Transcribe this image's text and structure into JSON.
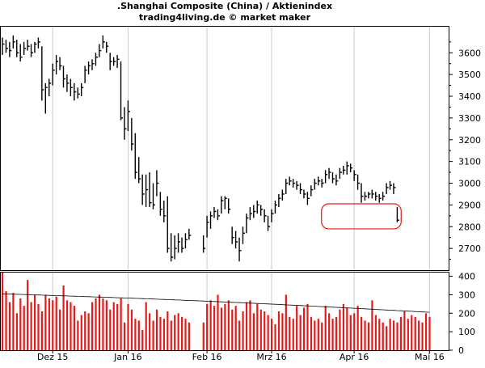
{
  "chart_data": [
    {
      "type": "ohlc",
      "title": ".Shanghai Composite (China) / Aktienindex",
      "subtitle": "trading4living.de © market maker",
      "ylim": [
        2600,
        3720
      ],
      "yticks": [
        2700,
        2800,
        2900,
        3000,
        3100,
        3200,
        3300,
        3400,
        3500,
        3600
      ],
      "ytick_labels": [
        "2700",
        "2800",
        "2900",
        "3000",
        "3100",
        "3200",
        "3300",
        "3400",
        "3500",
        "3600"
      ],
      "xticks": [
        {
          "label": "Dez 15",
          "index": 14
        },
        {
          "label": "Jan 16",
          "index": 35
        },
        {
          "label": "Feb 16",
          "index": 57
        },
        {
          "label": "Mrz 16",
          "index": 75
        },
        {
          "label": "Apr 16",
          "index": 98
        },
        {
          "label": "Mai 16",
          "index": 119
        }
      ],
      "grid": "vertical",
      "bars": [
        {
          "i": 0,
          "h": 3670,
          "l": 3590,
          "c": 3640
        },
        {
          "i": 1,
          "h": 3660,
          "l": 3600,
          "c": 3620
        },
        {
          "i": 2,
          "h": 3650,
          "l": 3580,
          "c": 3610
        },
        {
          "i": 3,
          "h": 3680,
          "l": 3620,
          "c": 3650
        },
        {
          "i": 4,
          "h": 3660,
          "l": 3580,
          "c": 3600
        },
        {
          "i": 5,
          "h": 3640,
          "l": 3560,
          "c": 3580
        },
        {
          "i": 6,
          "h": 3650,
          "l": 3590,
          "c": 3620
        },
        {
          "i": 7,
          "h": 3660,
          "l": 3610,
          "c": 3630
        },
        {
          "i": 8,
          "h": 3640,
          "l": 3580,
          "c": 3600
        },
        {
          "i": 9,
          "h": 3650,
          "l": 3600,
          "c": 3640
        },
        {
          "i": 10,
          "h": 3670,
          "l": 3620,
          "c": 3650
        },
        {
          "i": 11,
          "h": 3630,
          "l": 3380,
          "c": 3430
        },
        {
          "i": 12,
          "h": 3460,
          "l": 3320,
          "c": 3440
        },
        {
          "i": 13,
          "h": 3480,
          "l": 3400,
          "c": 3460
        },
        {
          "i": 14,
          "h": 3550,
          "l": 3450,
          "c": 3520
        },
        {
          "i": 15,
          "h": 3590,
          "l": 3500,
          "c": 3560
        },
        {
          "i": 16,
          "h": 3580,
          "l": 3520,
          "c": 3540
        },
        {
          "i": 17,
          "h": 3540,
          "l": 3440,
          "c": 3480
        },
        {
          "i": 18,
          "h": 3500,
          "l": 3420,
          "c": 3460
        },
        {
          "i": 19,
          "h": 3480,
          "l": 3400,
          "c": 3440
        },
        {
          "i": 20,
          "h": 3460,
          "l": 3380,
          "c": 3420
        },
        {
          "i": 21,
          "h": 3440,
          "l": 3390,
          "c": 3410
        },
        {
          "i": 22,
          "h": 3460,
          "l": 3400,
          "c": 3440
        },
        {
          "i": 23,
          "h": 3540,
          "l": 3460,
          "c": 3520
        },
        {
          "i": 24,
          "h": 3560,
          "l": 3500,
          "c": 3540
        },
        {
          "i": 25,
          "h": 3570,
          "l": 3520,
          "c": 3550
        },
        {
          "i": 26,
          "h": 3600,
          "l": 3540,
          "c": 3580
        },
        {
          "i": 27,
          "h": 3640,
          "l": 3580,
          "c": 3610
        },
        {
          "i": 28,
          "h": 3680,
          "l": 3620,
          "c": 3650
        },
        {
          "i": 29,
          "h": 3650,
          "l": 3600,
          "c": 3630
        },
        {
          "i": 30,
          "h": 3600,
          "l": 3520,
          "c": 3560
        },
        {
          "i": 31,
          "h": 3580,
          "l": 3540,
          "c": 3560
        },
        {
          "i": 32,
          "h": 3590,
          "l": 3530,
          "c": 3570
        },
        {
          "i": 33,
          "h": 3560,
          "l": 3290,
          "c": 3300
        },
        {
          "i": 34,
          "h": 3350,
          "l": 3200,
          "c": 3250
        },
        {
          "i": 35,
          "h": 3380,
          "l": 3240,
          "c": 3330
        },
        {
          "i": 36,
          "h": 3300,
          "l": 3150,
          "c": 3180
        },
        {
          "i": 37,
          "h": 3230,
          "l": 3020,
          "c": 3050
        },
        {
          "i": 38,
          "h": 3120,
          "l": 3000,
          "c": 3020
        },
        {
          "i": 39,
          "h": 3040,
          "l": 2900,
          "c": 2950
        },
        {
          "i": 40,
          "h": 3040,
          "l": 2890,
          "c": 2970
        },
        {
          "i": 41,
          "h": 3050,
          "l": 2890,
          "c": 2910
        },
        {
          "i": 42,
          "h": 3000,
          "l": 2880,
          "c": 2900
        },
        {
          "i": 43,
          "h": 3060,
          "l": 2940,
          "c": 3000
        },
        {
          "i": 44,
          "h": 2960,
          "l": 2850,
          "c": 2880
        },
        {
          "i": 45,
          "h": 2920,
          "l": 2820,
          "c": 2850
        },
        {
          "i": 46,
          "h": 2940,
          "l": 2680,
          "c": 2700
        },
        {
          "i": 47,
          "h": 2770,
          "l": 2640,
          "c": 2660
        },
        {
          "i": 48,
          "h": 2760,
          "l": 2650,
          "c": 2700
        },
        {
          "i": 49,
          "h": 2770,
          "l": 2680,
          "c": 2730
        },
        {
          "i": 50,
          "h": 2750,
          "l": 2680,
          "c": 2700
        },
        {
          "i": 51,
          "h": 2770,
          "l": 2700,
          "c": 2740
        },
        {
          "i": 52,
          "h": 2790,
          "l": 2740,
          "c": 2760
        },
        {
          "i": 56,
          "h": 2760,
          "l": 2680,
          "c": 2700
        },
        {
          "i": 57,
          "h": 2850,
          "l": 2750,
          "c": 2820
        },
        {
          "i": 58,
          "h": 2870,
          "l": 2790,
          "c": 2850
        },
        {
          "i": 59,
          "h": 2890,
          "l": 2840,
          "c": 2870
        },
        {
          "i": 60,
          "h": 2880,
          "l": 2830,
          "c": 2850
        },
        {
          "i": 61,
          "h": 2940,
          "l": 2860,
          "c": 2920
        },
        {
          "i": 62,
          "h": 2940,
          "l": 2880,
          "c": 2930
        },
        {
          "i": 63,
          "h": 2930,
          "l": 2860,
          "c": 2880
        },
        {
          "i": 64,
          "h": 2800,
          "l": 2720,
          "c": 2750
        },
        {
          "i": 65,
          "h": 2780,
          "l": 2700,
          "c": 2730
        },
        {
          "i": 66,
          "h": 2750,
          "l": 2640,
          "c": 2690
        },
        {
          "i": 67,
          "h": 2800,
          "l": 2720,
          "c": 2770
        },
        {
          "i": 68,
          "h": 2860,
          "l": 2770,
          "c": 2840
        },
        {
          "i": 69,
          "h": 2890,
          "l": 2830,
          "c": 2860
        },
        {
          "i": 70,
          "h": 2900,
          "l": 2840,
          "c": 2870
        },
        {
          "i": 71,
          "h": 2920,
          "l": 2860,
          "c": 2900
        },
        {
          "i": 72,
          "h": 2900,
          "l": 2850,
          "c": 2880
        },
        {
          "i": 73,
          "h": 2880,
          "l": 2820,
          "c": 2850
        },
        {
          "i": 74,
          "h": 2850,
          "l": 2780,
          "c": 2800
        },
        {
          "i": 75,
          "h": 2880,
          "l": 2820,
          "c": 2860
        },
        {
          "i": 76,
          "h": 2920,
          "l": 2860,
          "c": 2900
        },
        {
          "i": 77,
          "h": 2950,
          "l": 2890,
          "c": 2930
        },
        {
          "i": 78,
          "h": 2970,
          "l": 2920,
          "c": 2950
        },
        {
          "i": 79,
          "h": 3020,
          "l": 2950,
          "c": 3000
        },
        {
          "i": 80,
          "h": 3030,
          "l": 2990,
          "c": 3010
        },
        {
          "i": 81,
          "h": 3020,
          "l": 2980,
          "c": 3000
        },
        {
          "i": 82,
          "h": 3010,
          "l": 2970,
          "c": 2990
        },
        {
          "i": 83,
          "h": 3000,
          "l": 2950,
          "c": 2970
        },
        {
          "i": 84,
          "h": 2970,
          "l": 2930,
          "c": 2950
        },
        {
          "i": 85,
          "h": 2960,
          "l": 2900,
          "c": 2930
        },
        {
          "i": 86,
          "h": 2990,
          "l": 2940,
          "c": 2970
        },
        {
          "i": 87,
          "h": 3020,
          "l": 2970,
          "c": 3000
        },
        {
          "i": 88,
          "h": 3030,
          "l": 2990,
          "c": 3010
        },
        {
          "i": 89,
          "h": 3020,
          "l": 2980,
          "c": 3000
        },
        {
          "i": 90,
          "h": 3060,
          "l": 3000,
          "c": 3040
        },
        {
          "i": 91,
          "h": 3070,
          "l": 3020,
          "c": 3050
        },
        {
          "i": 92,
          "h": 3050,
          "l": 3000,
          "c": 3020
        },
        {
          "i": 93,
          "h": 3040,
          "l": 2990,
          "c": 3010
        },
        {
          "i": 94,
          "h": 3070,
          "l": 3020,
          "c": 3050
        },
        {
          "i": 95,
          "h": 3080,
          "l": 3040,
          "c": 3060
        },
        {
          "i": 96,
          "h": 3100,
          "l": 3040,
          "c": 3080
        },
        {
          "i": 97,
          "h": 3090,
          "l": 3050,
          "c": 3070
        },
        {
          "i": 98,
          "h": 3060,
          "l": 3010,
          "c": 3040
        },
        {
          "i": 99,
          "h": 3040,
          "l": 2970,
          "c": 3000
        },
        {
          "i": 100,
          "h": 3000,
          "l": 2910,
          "c": 2940
        },
        {
          "i": 101,
          "h": 2960,
          "l": 2920,
          "c": 2940
        },
        {
          "i": 102,
          "h": 2960,
          "l": 2930,
          "c": 2950
        },
        {
          "i": 103,
          "h": 2970,
          "l": 2930,
          "c": 2950
        },
        {
          "i": 104,
          "h": 2960,
          "l": 2920,
          "c": 2940
        },
        {
          "i": 105,
          "h": 2950,
          "l": 2910,
          "c": 2930
        },
        {
          "i": 106,
          "h": 2960,
          "l": 2920,
          "c": 2940
        },
        {
          "i": 107,
          "h": 3000,
          "l": 2950,
          "c": 2980
        },
        {
          "i": 108,
          "h": 3010,
          "l": 2970,
          "c": 2990
        },
        {
          "i": 109,
          "h": 3000,
          "l": 2950,
          "c": 2980
        },
        {
          "i": 110,
          "h": 2890,
          "l": 2820,
          "c": 2830
        }
      ],
      "annotations": [
        {
          "type": "rounded-rect",
          "color": "#e31b1b",
          "x_range": [
            88,
            112
          ],
          "y_range": [
            2790,
            2905
          ]
        }
      ],
      "colors": {
        "bars": "#000000",
        "annotation": "#e31b1b"
      }
    },
    {
      "type": "bar",
      "ylim": [
        0,
        420
      ],
      "yticks": [
        0,
        100,
        200,
        300,
        400
      ],
      "ytick_labels": [
        "0",
        "100",
        "200",
        "300",
        "400"
      ],
      "volume": [
        420,
        320,
        260,
        310,
        200,
        280,
        240,
        380,
        260,
        300,
        250,
        210,
        300,
        280,
        270,
        290,
        220,
        350,
        270,
        260,
        240,
        160,
        190,
        210,
        200,
        260,
        280,
        300,
        280,
        270,
        220,
        260,
        250,
        280,
        150,
        250,
        220,
        170,
        160,
        110,
        260,
        200,
        160,
        220,
        180,
        170,
        210,
        160,
        190,
        200,
        180,
        170,
        150,
        0,
        0,
        0,
        150,
        250,
        270,
        240,
        300,
        230,
        250,
        270,
        220,
        240,
        160,
        210,
        260,
        270,
        200,
        250,
        220,
        210,
        190,
        170,
        140,
        210,
        200,
        300,
        180,
        170,
        240,
        190,
        230,
        250,
        180,
        160,
        170,
        150,
        240,
        200,
        170,
        180,
        220,
        250,
        230,
        190,
        200,
        240,
        180,
        160,
        150,
        270,
        190,
        170,
        150,
        130,
        170,
        160,
        150,
        180,
        210,
        170,
        190,
        180,
        160,
        150,
        200,
        180
      ],
      "moving_average_label": "",
      "ma_start": 305,
      "ma_end": 205,
      "colors": {
        "bars": "#e31b1b",
        "ma": "#000000"
      }
    }
  ]
}
